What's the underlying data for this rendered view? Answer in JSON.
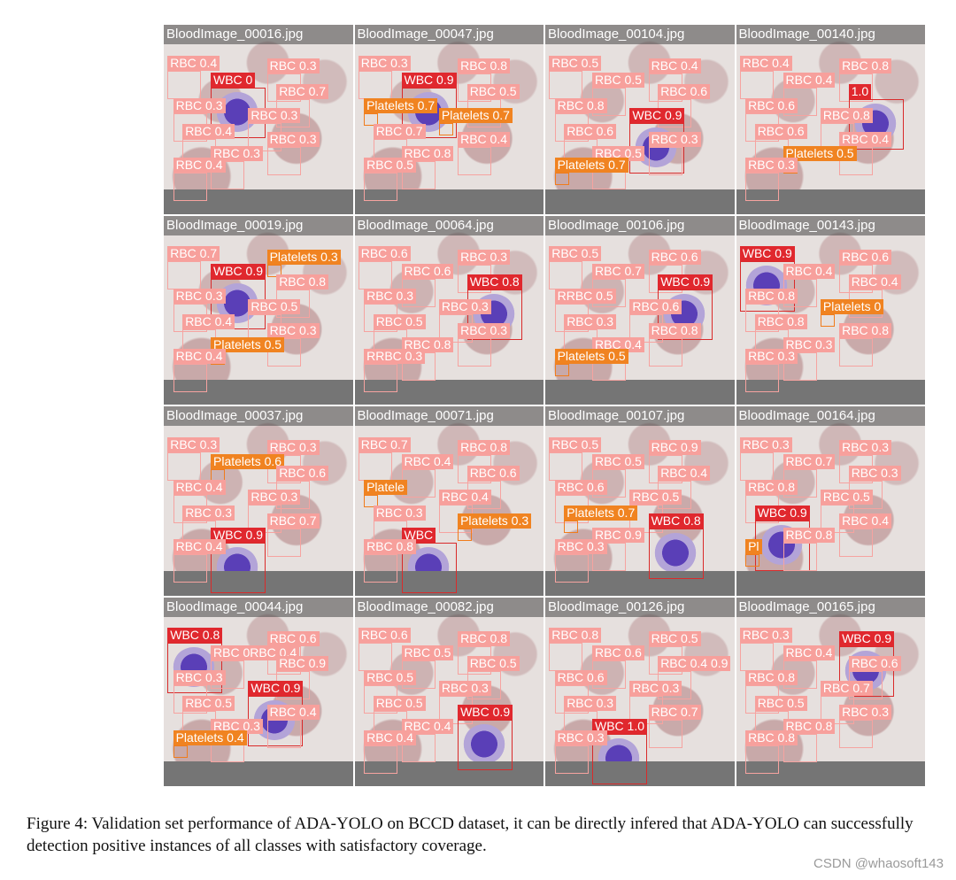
{
  "figure": {
    "tiles": [
      {
        "title": "BloodImage_00016.jpg",
        "labels": [
          {
            "text": "RBC 0.4",
            "cls": "rbc"
          },
          {
            "text": "RBC 0.3",
            "cls": "rbc"
          },
          {
            "text": "WBC 0",
            "cls": "wbc"
          },
          {
            "text": "RBC 0.7",
            "cls": "rbc"
          },
          {
            "text": "RBC 0.3",
            "cls": "rbc"
          },
          {
            "text": "RBC 0.3",
            "cls": "rbc"
          },
          {
            "text": "RBC 0.4",
            "cls": "rbc"
          },
          {
            "text": "RBC 0.3",
            "cls": "rbc"
          },
          {
            "text": "RBC 0.3",
            "cls": "rbc"
          },
          {
            "text": "RBC 0.4",
            "cls": "rbc"
          }
        ]
      },
      {
        "title": "BloodImage_00047.jpg",
        "labels": [
          {
            "text": "RBC 0.3",
            "cls": "rbc"
          },
          {
            "text": "RBC 0.8",
            "cls": "rbc"
          },
          {
            "text": "WBC 0.9",
            "cls": "wbc"
          },
          {
            "text": "RBC 0.5",
            "cls": "rbc"
          },
          {
            "text": "Platelets 0.7",
            "cls": "plt"
          },
          {
            "text": "Platelets 0.7",
            "cls": "plt"
          },
          {
            "text": "RBC 0.7",
            "cls": "rbc"
          },
          {
            "text": "RBC 0.4",
            "cls": "rbc"
          },
          {
            "text": "RBC 0.8",
            "cls": "rbc"
          },
          {
            "text": "RBC 0.5",
            "cls": "rbc"
          }
        ]
      },
      {
        "title": "BloodImage_00104.jpg",
        "labels": [
          {
            "text": "RBC 0.5",
            "cls": "rbc"
          },
          {
            "text": "RBC 0.4",
            "cls": "rbc"
          },
          {
            "text": "RBC 0.5",
            "cls": "rbc"
          },
          {
            "text": "RBC 0.6",
            "cls": "rbc"
          },
          {
            "text": "RBC 0.8",
            "cls": "rbc"
          },
          {
            "text": "WBC 0.9",
            "cls": "wbc"
          },
          {
            "text": "RBC 0.6",
            "cls": "rbc"
          },
          {
            "text": "RBC 0.3",
            "cls": "rbc"
          },
          {
            "text": "RBC 0.5",
            "cls": "rbc"
          },
          {
            "text": "Platelets 0.7",
            "cls": "plt"
          }
        ]
      },
      {
        "title": "BloodImage_00140.jpg",
        "labels": [
          {
            "text": "RBC 0.4",
            "cls": "rbc"
          },
          {
            "text": "RBC 0.8",
            "cls": "rbc"
          },
          {
            "text": "RBC 0.4",
            "cls": "rbc"
          },
          {
            "text": "1.0",
            "cls": "wbc"
          },
          {
            "text": "RBC 0.6",
            "cls": "rbc"
          },
          {
            "text": "RBC 0.8",
            "cls": "rbc"
          },
          {
            "text": "RBC 0.6",
            "cls": "rbc"
          },
          {
            "text": "RBC 0.4",
            "cls": "rbc"
          },
          {
            "text": "Platelets 0.5",
            "cls": "plt"
          },
          {
            "text": "RBC 0.3",
            "cls": "rbc"
          }
        ]
      },
      {
        "title": "BloodImage_00019.jpg",
        "labels": [
          {
            "text": "RBC 0.7",
            "cls": "rbc"
          },
          {
            "text": "Platelets 0.3",
            "cls": "plt"
          },
          {
            "text": "WBC 0.9",
            "cls": "wbc"
          },
          {
            "text": "RBC 0.8",
            "cls": "rbc"
          },
          {
            "text": "RBC 0.3",
            "cls": "rbc"
          },
          {
            "text": "RBC 0.5",
            "cls": "rbc"
          },
          {
            "text": "RBC 0.4",
            "cls": "rbc"
          },
          {
            "text": "RBC 0.3",
            "cls": "rbc"
          },
          {
            "text": "Platelets 0.5",
            "cls": "plt"
          },
          {
            "text": "RBC 0.4",
            "cls": "rbc"
          }
        ]
      },
      {
        "title": "BloodImage_00064.jpg",
        "labels": [
          {
            "text": "RBC 0.6",
            "cls": "rbc"
          },
          {
            "text": "RBC 0.3",
            "cls": "rbc"
          },
          {
            "text": "RBC 0.6",
            "cls": "rbc"
          },
          {
            "text": "WBC 0.8",
            "cls": "wbc"
          },
          {
            "text": "RBC 0.3",
            "cls": "rbc"
          },
          {
            "text": "RBC 0.3",
            "cls": "rbc"
          },
          {
            "text": "RBC 0.5",
            "cls": "rbc"
          },
          {
            "text": "RBC 0.3",
            "cls": "rbc"
          },
          {
            "text": "RBC 0.8",
            "cls": "rbc"
          },
          {
            "text": "RRBC 0.3",
            "cls": "rbc"
          }
        ]
      },
      {
        "title": "BloodImage_00106.jpg",
        "labels": [
          {
            "text": "RBC 0.5",
            "cls": "rbc"
          },
          {
            "text": "RBC 0.6",
            "cls": "rbc"
          },
          {
            "text": "RBC 0.7",
            "cls": "rbc"
          },
          {
            "text": "WBC 0.9",
            "cls": "wbc"
          },
          {
            "text": "RRBC 0.5",
            "cls": "rbc"
          },
          {
            "text": "RBC 0.6",
            "cls": "rbc"
          },
          {
            "text": "RBC 0.3",
            "cls": "rbc"
          },
          {
            "text": "RBC 0.8",
            "cls": "rbc"
          },
          {
            "text": "RBC 0.4",
            "cls": "rbc"
          },
          {
            "text": "Platelets 0.5",
            "cls": "plt"
          }
        ]
      },
      {
        "title": "BloodImage_00143.jpg",
        "labels": [
          {
            "text": "WBC 0.9",
            "cls": "wbc"
          },
          {
            "text": "RBC 0.6",
            "cls": "rbc"
          },
          {
            "text": "RBC 0.4",
            "cls": "rbc"
          },
          {
            "text": "RBC 0.4",
            "cls": "rbc"
          },
          {
            "text": "RBC 0.8",
            "cls": "rbc"
          },
          {
            "text": "Platelets 0",
            "cls": "plt"
          },
          {
            "text": "RBC 0.8",
            "cls": "rbc"
          },
          {
            "text": "RBC 0.8",
            "cls": "rbc"
          },
          {
            "text": "RBC 0.3",
            "cls": "rbc"
          },
          {
            "text": "RBC 0.3",
            "cls": "rbc"
          }
        ]
      },
      {
        "title": "BloodImage_00037.jpg",
        "labels": [
          {
            "text": "RBC 0.3",
            "cls": "rbc"
          },
          {
            "text": "RBC 0.3",
            "cls": "rbc"
          },
          {
            "text": "Platelets 0.6",
            "cls": "plt"
          },
          {
            "text": "RBC 0.6",
            "cls": "rbc"
          },
          {
            "text": "RBC 0.4",
            "cls": "rbc"
          },
          {
            "text": "RBC 0.3",
            "cls": "rbc"
          },
          {
            "text": "RBC 0.3",
            "cls": "rbc"
          },
          {
            "text": "RBC 0.7",
            "cls": "rbc"
          },
          {
            "text": "WBC 0.9",
            "cls": "wbc"
          },
          {
            "text": "RBC 0.4",
            "cls": "rbc"
          }
        ]
      },
      {
        "title": "BloodImage_00071.jpg",
        "labels": [
          {
            "text": "RBC 0.7",
            "cls": "rbc"
          },
          {
            "text": "RBC 0.8",
            "cls": "rbc"
          },
          {
            "text": "RBC 0.4",
            "cls": "rbc"
          },
          {
            "text": "RBC 0.6",
            "cls": "rbc"
          },
          {
            "text": "Platele",
            "cls": "plt"
          },
          {
            "text": "RBC 0.4",
            "cls": "rbc"
          },
          {
            "text": "RBC 0.3",
            "cls": "rbc"
          },
          {
            "text": "Platelets 0.3",
            "cls": "plt"
          },
          {
            "text": "WBC",
            "cls": "wbc"
          },
          {
            "text": "RBC 0.8",
            "cls": "rbc"
          }
        ]
      },
      {
        "title": "BloodImage_00107.jpg",
        "labels": [
          {
            "text": "RBC 0.5",
            "cls": "rbc"
          },
          {
            "text": "RBC 0.9",
            "cls": "rbc"
          },
          {
            "text": "RBC 0.5",
            "cls": "rbc"
          },
          {
            "text": "RBC 0.4",
            "cls": "rbc"
          },
          {
            "text": "RBC 0.6",
            "cls": "rbc"
          },
          {
            "text": "RBC 0.5",
            "cls": "rbc"
          },
          {
            "text": "Platelets 0.7",
            "cls": "plt"
          },
          {
            "text": "WBC 0.8",
            "cls": "wbc"
          },
          {
            "text": "RBC 0.9",
            "cls": "rbc"
          },
          {
            "text": "RBC 0.3",
            "cls": "rbc"
          }
        ]
      },
      {
        "title": "BloodImage_00164.jpg",
        "labels": [
          {
            "text": "RBC 0.3",
            "cls": "rbc"
          },
          {
            "text": "RBC 0.3",
            "cls": "rbc"
          },
          {
            "text": "RBC 0.7",
            "cls": "rbc"
          },
          {
            "text": "RBC 0.3",
            "cls": "rbc"
          },
          {
            "text": "RBC 0.8",
            "cls": "rbc"
          },
          {
            "text": "RBC 0.5",
            "cls": "rbc"
          },
          {
            "text": "WBC 0.9",
            "cls": "wbc"
          },
          {
            "text": "RBC 0.4",
            "cls": "rbc"
          },
          {
            "text": "RBC 0.8",
            "cls": "rbc"
          },
          {
            "text": "Pl",
            "cls": "plt"
          }
        ]
      },
      {
        "title": "BloodImage_00044.jpg",
        "labels": [
          {
            "text": "WBC 0.8",
            "cls": "wbc"
          },
          {
            "text": "RBC 0.6",
            "cls": "rbc"
          },
          {
            "text": "RBC 0RBC 0.4",
            "cls": "rbc"
          },
          {
            "text": "RBC 0.9",
            "cls": "rbc"
          },
          {
            "text": "RBC 0.3",
            "cls": "rbc"
          },
          {
            "text": "WBC 0.9",
            "cls": "wbc"
          },
          {
            "text": "RBC 0.5",
            "cls": "rbc"
          },
          {
            "text": "RBC 0.4",
            "cls": "rbc"
          },
          {
            "text": "RBC 0.3",
            "cls": "rbc"
          },
          {
            "text": "Platelets 0.4",
            "cls": "plt"
          }
        ]
      },
      {
        "title": "BloodImage_00082.jpg",
        "labels": [
          {
            "text": "RBC 0.6",
            "cls": "rbc"
          },
          {
            "text": "RBC 0.8",
            "cls": "rbc"
          },
          {
            "text": "RBC 0.5",
            "cls": "rbc"
          },
          {
            "text": "RBC 0.5",
            "cls": "rbc"
          },
          {
            "text": "RBC 0.5",
            "cls": "rbc"
          },
          {
            "text": "RBC 0.3",
            "cls": "rbc"
          },
          {
            "text": "RBC 0.5",
            "cls": "rbc"
          },
          {
            "text": "WBC 0.9",
            "cls": "wbc"
          },
          {
            "text": "RBC 0.4",
            "cls": "rbc"
          },
          {
            "text": "RBC 0.4",
            "cls": "rbc"
          }
        ]
      },
      {
        "title": "BloodImage_00126.jpg",
        "labels": [
          {
            "text": "RBC 0.8",
            "cls": "rbc"
          },
          {
            "text": "RBC 0.5",
            "cls": "rbc"
          },
          {
            "text": "RBC 0.6",
            "cls": "rbc"
          },
          {
            "text": "RBC 0.4 0.9",
            "cls": "rbc"
          },
          {
            "text": "RBC 0.6",
            "cls": "rbc"
          },
          {
            "text": "RBC 0.3",
            "cls": "rbc"
          },
          {
            "text": "RBC 0.3",
            "cls": "rbc"
          },
          {
            "text": "RBC 0.7",
            "cls": "rbc"
          },
          {
            "text": "WBC 1.0",
            "cls": "wbc"
          },
          {
            "text": "RBC 0.3",
            "cls": "rbc"
          }
        ]
      },
      {
        "title": "BloodImage_00165.jpg",
        "labels": [
          {
            "text": "RBC 0.3",
            "cls": "rbc"
          },
          {
            "text": "WBC 0.9",
            "cls": "wbc"
          },
          {
            "text": "RBC 0.4",
            "cls": "rbc"
          },
          {
            "text": "RBC 0.6",
            "cls": "rbc"
          },
          {
            "text": "RBC 0.8",
            "cls": "rbc"
          },
          {
            "text": "RBC 0.7",
            "cls": "rbc"
          },
          {
            "text": "RBC 0.5",
            "cls": "rbc"
          },
          {
            "text": "RBC 0.3",
            "cls": "rbc"
          },
          {
            "text": "RBC 0.8",
            "cls": "rbc"
          },
          {
            "text": "RBC 0.8",
            "cls": "rbc"
          }
        ]
      }
    ]
  },
  "caption": "Figure 4: Validation set performance of ADA-YOLO on BCCD dataset, it can be directly infered that ADA-YOLO can successfully detection positive instances of all classes with satisfactory coverage.",
  "watermark": "CSDN @whaosoft143",
  "colors": {
    "rbc": "#f7a09c",
    "wbc": "#e0282e",
    "platelets": "#f08321"
  }
}
